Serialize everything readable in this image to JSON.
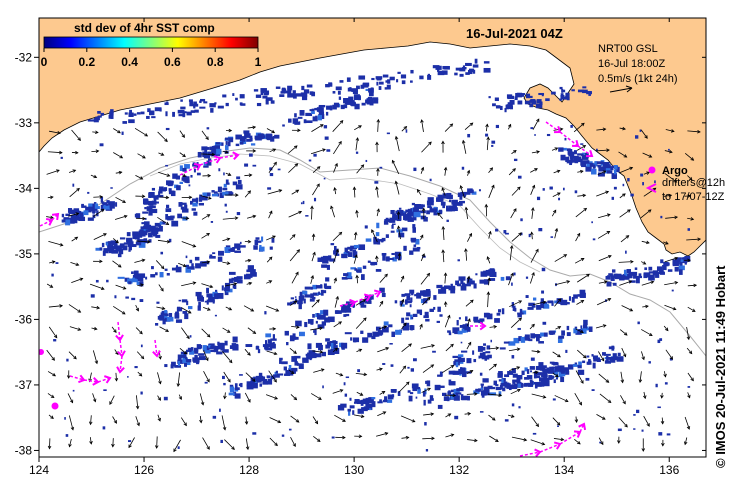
{
  "map": {
    "datetime": "16-Jul-2021 04Z",
    "current_product": "NRT00 GSL",
    "current_time": "16-Jul 18:00Z",
    "arrow_scale": "0.5m/s (1kt 24h)",
    "credit": "© IMOS 20-Jul-2021 11:49 Hobart",
    "colorbar": {
      "title": "std dev of 4hr SST comp",
      "ticks": [
        "0",
        "0.2",
        "0.4",
        "0.6",
        "0.8",
        "1"
      ],
      "colors": [
        "#00007f",
        "#0000ff",
        "#007fff",
        "#00ffff",
        "#7fff7f",
        "#ffff00",
        "#ff7f00",
        "#ff0000",
        "#7f0000"
      ]
    },
    "legend": {
      "argo_label": "Argo",
      "drifters_label": "drifters@12h",
      "drifters_range": "to 17/07-12Z"
    },
    "axes": {
      "lon_ticks": [
        "124",
        "126",
        "128",
        "130",
        "132",
        "134",
        "136"
      ],
      "lat_ticks": [
        "-32",
        "-33",
        "-34",
        "-35",
        "-36",
        "-37",
        "-38"
      ],
      "lon_range": [
        124,
        136.7
      ],
      "lat_range": [
        -38.1,
        -31.4
      ]
    },
    "colors": {
      "land": "#fdc98f",
      "ocean": "#ffffff",
      "sst_patch": "#1c2fa8",
      "drifter": "#ff00ff",
      "isobath": "#aaaaaa"
    }
  }
}
